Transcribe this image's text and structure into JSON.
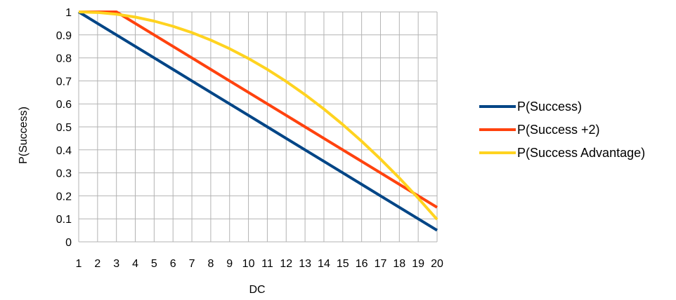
{
  "chart_data": {
    "type": "line",
    "xlabel": "DC",
    "ylabel": "P(Success)",
    "x": [
      1,
      2,
      3,
      4,
      5,
      6,
      7,
      8,
      9,
      10,
      11,
      12,
      13,
      14,
      15,
      16,
      17,
      18,
      19,
      20
    ],
    "xlim": [
      1,
      20
    ],
    "ylim": [
      0,
      1
    ],
    "yticks": [
      "0",
      "0.1",
      "0.2",
      "0.3",
      "0.4",
      "0.5",
      "0.6",
      "0.7",
      "0.8",
      "0.9",
      "1"
    ],
    "xticks": [
      "1",
      "2",
      "3",
      "4",
      "5",
      "6",
      "7",
      "8",
      "9",
      "10",
      "11",
      "12",
      "13",
      "14",
      "15",
      "16",
      "17",
      "18",
      "19",
      "20"
    ],
    "grid": true,
    "legend_position": "right",
    "series": [
      {
        "name": "P(Success)",
        "color": "#004586",
        "values": [
          1,
          0.95,
          0.9,
          0.85,
          0.8,
          0.75,
          0.7,
          0.65,
          0.6,
          0.55,
          0.5,
          0.45,
          0.4,
          0.35,
          0.3,
          0.25,
          0.2,
          0.15,
          0.1,
          0.05
        ]
      },
      {
        "name": "P(Success +2)",
        "color": "#ff420e",
        "values": [
          1,
          1,
          1,
          0.95,
          0.9,
          0.85,
          0.8,
          0.75,
          0.7,
          0.65,
          0.6,
          0.55,
          0.5,
          0.45,
          0.4,
          0.35,
          0.3,
          0.25,
          0.2,
          0.15
        ]
      },
      {
        "name": "P(Success Advantage)",
        "color": "#ffd320",
        "values": [
          1,
          0.9975,
          0.99,
          0.9775,
          0.96,
          0.9375,
          0.91,
          0.8775,
          0.84,
          0.7975,
          0.75,
          0.6975,
          0.64,
          0.5775,
          0.51,
          0.4375,
          0.36,
          0.2775,
          0.19,
          0.0975
        ]
      }
    ]
  }
}
